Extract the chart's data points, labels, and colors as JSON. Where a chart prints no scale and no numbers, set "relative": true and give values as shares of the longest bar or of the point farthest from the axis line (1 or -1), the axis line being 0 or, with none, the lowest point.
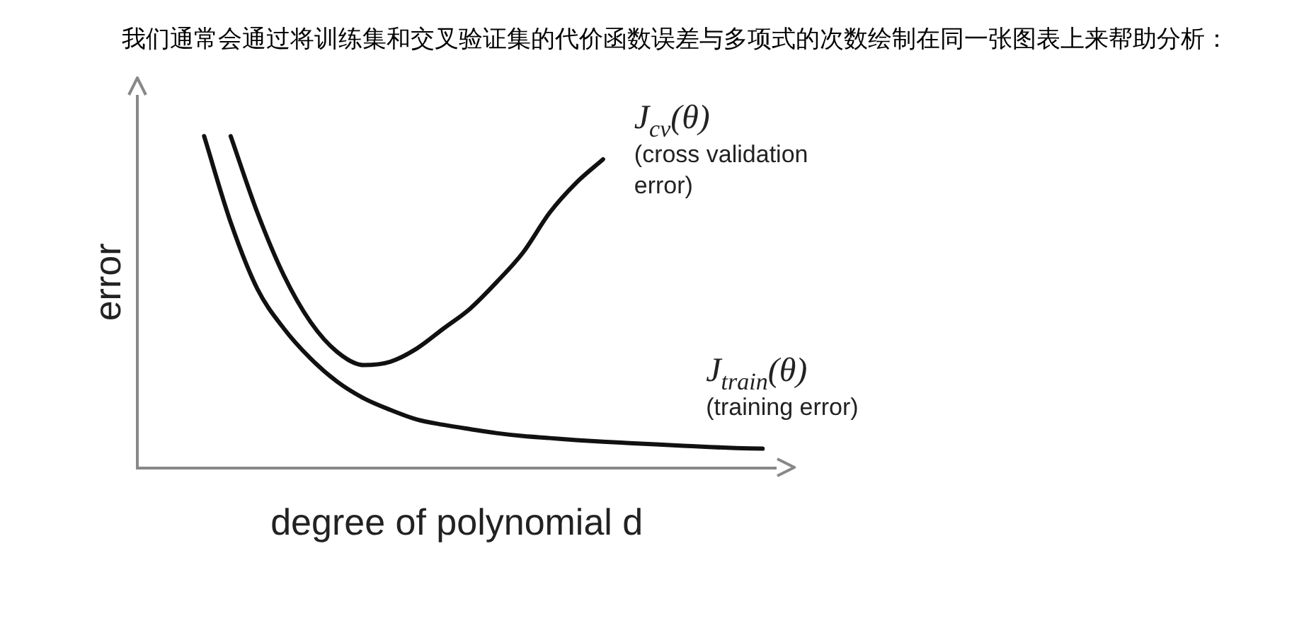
{
  "chart_data": {
    "type": "line",
    "title": "我们通常会通过将训练集和交叉验证集的代价函数误差与多项式的次数绘制在同一张图表上来帮助分析：",
    "xlabel": "degree of polynomial d",
    "ylabel": "error",
    "relative": true,
    "legend": false,
    "marker": "none",
    "line_style": "solid",
    "categories": [
      null,
      null,
      null,
      null,
      null,
      null,
      null,
      null,
      null,
      null,
      null,
      null,
      null,
      null,
      null,
      null,
      null,
      null,
      null,
      null,
      null,
      null,
      null,
      null
    ],
    "series": [
      {
        "name": "J$_{cv}$(θ)",
        "color": "#111111",
        "values": [
          null,
          null,
          null,
          1.0,
          0.77,
          0.58,
          0.44,
          0.35,
          0.31,
          0.32,
          0.36,
          0.42,
          0.48,
          0.56,
          0.65,
          0.77,
          0.86,
          0.93,
          null,
          null,
          null,
          null,
          null,
          null
        ]
      },
      {
        "name": "J$_{train}$(θ)",
        "color": "#111111",
        "values": [
          null,
          null,
          1.0,
          0.74,
          0.54,
          0.42,
          0.33,
          0.26,
          0.21,
          0.175,
          0.146,
          0.13,
          0.117,
          0.105,
          0.096,
          0.09,
          0.084,
          0.079,
          0.075,
          0.071,
          0.067,
          0.063,
          0.06,
          0.058
        ]
      }
    ],
    "annotations": [
      "(cross validation error)",
      "(training error)"
    ]
  }
}
